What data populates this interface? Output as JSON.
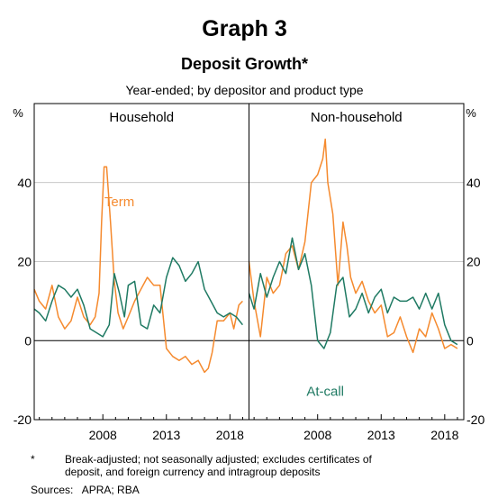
{
  "chart_data": {
    "type": "line",
    "title": "Graph 3",
    "subtitle": "Deposit Growth*",
    "description": "Year-ended; by depositor and product type",
    "ylabel_left": "%",
    "ylabel_right": "%",
    "ylim": [
      -20,
      60
    ],
    "yticks": [
      -20,
      0,
      20,
      40
    ],
    "grid": true,
    "colors": {
      "Term": "#f58a2e",
      "At-call": "#1f7a63"
    },
    "panels": [
      {
        "name": "Household",
        "xlim": [
          2002.6,
          2019.5
        ],
        "xticks": [
          2008,
          2013,
          2018
        ],
        "series": [
          {
            "name": "Term",
            "label_shown": true,
            "x": [
              2002.6,
              2003.0,
              2003.5,
              2004.0,
              2004.5,
              2005.0,
              2005.5,
              2006.0,
              2006.5,
              2007.0,
              2007.4,
              2007.7,
              2007.9,
              2008.1,
              2008.3,
              2008.6,
              2008.9,
              2009.2,
              2009.6,
              2010.0,
              2010.5,
              2011.0,
              2011.5,
              2012.0,
              2012.5,
              2013.0,
              2013.5,
              2014.0,
              2014.5,
              2015.0,
              2015.5,
              2016.0,
              2016.3,
              2016.6,
              2017.0,
              2017.5,
              2018.0,
              2018.3,
              2018.7,
              2019.0
            ],
            "values": [
              13,
              10,
              8,
              14,
              6,
              3,
              5,
              11,
              6,
              4,
              6,
              12,
              30,
              44,
              44,
              30,
              15,
              7,
              3,
              6,
              10,
              13,
              16,
              14,
              14,
              -2,
              -4,
              -5,
              -4,
              -6,
              -5,
              -8,
              -7,
              -3,
              5,
              5,
              7,
              3,
              9,
              10
            ]
          },
          {
            "name": "At-call",
            "label_shown": false,
            "x": [
              2002.6,
              2003.0,
              2003.5,
              2004.0,
              2004.5,
              2005.0,
              2005.5,
              2006.0,
              2006.5,
              2007.0,
              2007.5,
              2008.0,
              2008.5,
              2008.9,
              2009.3,
              2009.7,
              2010.0,
              2010.5,
              2011.0,
              2011.5,
              2012.0,
              2012.5,
              2013.0,
              2013.5,
              2014.0,
              2014.5,
              2015.0,
              2015.5,
              2016.0,
              2016.5,
              2017.0,
              2017.5,
              2018.0,
              2018.5,
              2019.0
            ],
            "values": [
              8,
              7,
              5,
              10,
              14,
              13,
              11,
              13,
              9,
              3,
              2,
              1,
              4,
              17,
              12,
              6,
              14,
              15,
              4,
              3,
              9,
              7,
              16,
              21,
              19,
              15,
              17,
              20,
              13,
              10,
              7,
              6,
              7,
              6,
              4
            ]
          }
        ]
      },
      {
        "name": "Non-household",
        "xlim": [
          2002.6,
          2019.5
        ],
        "xticks": [
          2008,
          2013,
          2018
        ],
        "series": [
          {
            "name": "Term",
            "label_shown": false,
            "x": [
              2002.6,
              2003.0,
              2003.5,
              2004.0,
              2004.5,
              2005.0,
              2005.5,
              2006.0,
              2006.5,
              2007.0,
              2007.5,
              2008.0,
              2008.4,
              2008.6,
              2008.8,
              2009.2,
              2009.6,
              2010.0,
              2010.3,
              2010.6,
              2011.0,
              2011.5,
              2012.0,
              2012.5,
              2013.0,
              2013.5,
              2014.0,
              2014.5,
              2015.0,
              2015.5,
              2016.0,
              2016.5,
              2017.0,
              2017.5,
              2018.0,
              2018.5,
              2019.0
            ],
            "values": [
              20,
              10,
              1,
              16,
              12,
              14,
              22,
              24,
              18,
              25,
              40,
              42,
              46,
              51,
              40,
              32,
              14,
              30,
              24,
              16,
              12,
              15,
              10,
              7,
              9,
              1,
              2,
              6,
              1,
              -3,
              3,
              1,
              7,
              3,
              -2,
              -1,
              -2
            ]
          },
          {
            "name": "At-call",
            "label_shown": true,
            "x": [
              2002.6,
              2003.0,
              2003.5,
              2004.0,
              2004.5,
              2005.0,
              2005.5,
              2006.0,
              2006.5,
              2007.0,
              2007.5,
              2008.0,
              2008.5,
              2009.0,
              2009.5,
              2010.0,
              2010.5,
              2011.0,
              2011.5,
              2012.0,
              2012.5,
              2013.0,
              2013.5,
              2014.0,
              2014.5,
              2015.0,
              2015.5,
              2016.0,
              2016.5,
              2017.0,
              2017.5,
              2018.0,
              2018.5,
              2019.0
            ],
            "values": [
              12,
              8,
              17,
              11,
              16,
              20,
              17,
              26,
              18,
              22,
              14,
              0,
              -2,
              2,
              14,
              16,
              6,
              8,
              12,
              7,
              11,
              13,
              7,
              11,
              10,
              10,
              11,
              8,
              12,
              8,
              12,
              4,
              0,
              -1
            ]
          }
        ]
      }
    ],
    "annotations": {
      "Household": "Term",
      "Non-household": "At-call"
    }
  },
  "footnote": {
    "marker": "*",
    "line1": "Break-adjusted; not seasonally adjusted; excludes certificates of",
    "line2": "deposit, and foreign currency and intragroup deposits"
  },
  "sources": "Sources:   APRA; RBA"
}
